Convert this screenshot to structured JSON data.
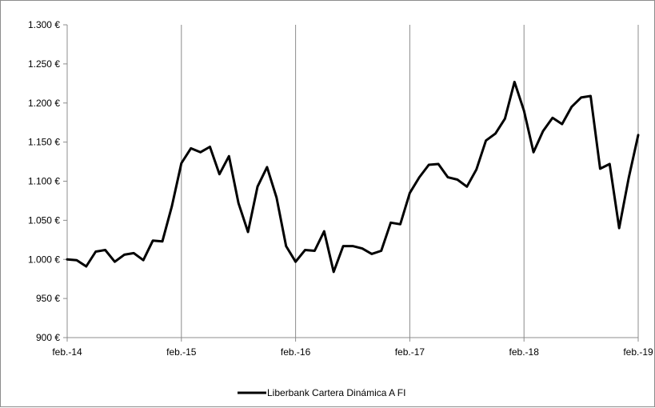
{
  "chart_data": {
    "type": "line",
    "title": "",
    "xlabel": "",
    "ylabel": "",
    "ylim": [
      900,
      1300
    ],
    "y_ticks": [
      900,
      950,
      1000,
      1050,
      1100,
      1150,
      1200,
      1250,
      1300
    ],
    "y_tick_labels": [
      "900 €",
      "950 €",
      "1.000 €",
      "1.050 €",
      "1.100 €",
      "1.150 €",
      "1.200 €",
      "1.250 €",
      "1.300 €"
    ],
    "x_tick_labels": [
      "feb.-14",
      "feb.-15",
      "feb.-16",
      "feb.-17",
      "feb.-18",
      "feb.-19"
    ],
    "x_unit": "months since feb.-14",
    "grid": "vertical",
    "legend_position": "bottom-center",
    "series": [
      {
        "name": "Liberbank Cartera Dinámica A FI",
        "color": "#000000",
        "values": [
          1000,
          999,
          991,
          1010,
          1012,
          997,
          1006,
          1008,
          999,
          1024,
          1023,
          1068,
          1123,
          1142,
          1137,
          1144,
          1109,
          1132,
          1072,
          1035,
          1093,
          1118,
          1079,
          1017,
          997,
          1012,
          1011,
          1036,
          984,
          1017,
          1017,
          1014,
          1007,
          1011,
          1047,
          1045,
          1085,
          1105,
          1121,
          1122,
          1105,
          1102,
          1093,
          1115,
          1152,
          1161,
          1180,
          1227,
          1190,
          1137,
          1164,
          1181,
          1173,
          1195,
          1207,
          1209,
          1116,
          1122,
          1040,
          1104,
          1159
        ]
      }
    ]
  }
}
